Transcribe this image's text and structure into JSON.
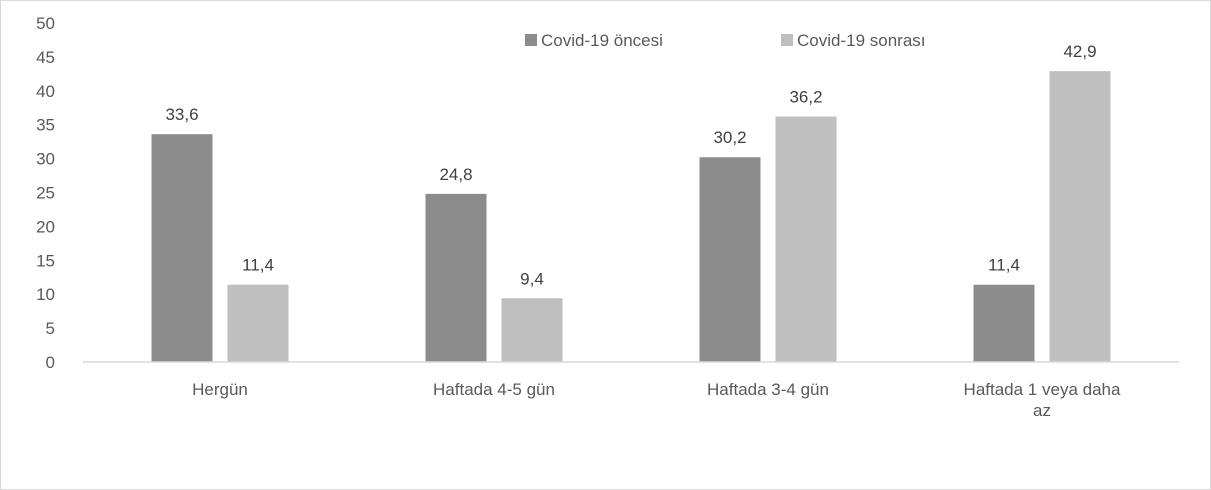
{
  "chart_data": {
    "type": "bar",
    "categories": [
      [
        "Hergün"
      ],
      [
        "Haftada 4-5 gün"
      ],
      [
        "Haftada 3-4 gün"
      ],
      [
        "Haftada 1 veya daha",
        "az"
      ]
    ],
    "series": [
      {
        "name": "Covid-19 öncesi",
        "color": "#8c8c8c",
        "values": [
          33.6,
          24.8,
          30.2,
          11.4
        ],
        "labels": [
          "33,6",
          "24,8",
          "30,2",
          "11,4"
        ]
      },
      {
        "name": "Covid-19 sonrası",
        "color": "#bfbfbf",
        "values": [
          11.4,
          9.4,
          36.2,
          42.9
        ],
        "labels": [
          "11,4",
          "9,4",
          "36,2",
          "42,9"
        ]
      }
    ],
    "ylim": [
      0,
      50
    ],
    "yticks": [
      0,
      5,
      10,
      15,
      20,
      25,
      30,
      35,
      40,
      45,
      50
    ],
    "legend_position": "top-right",
    "grid": false
  }
}
